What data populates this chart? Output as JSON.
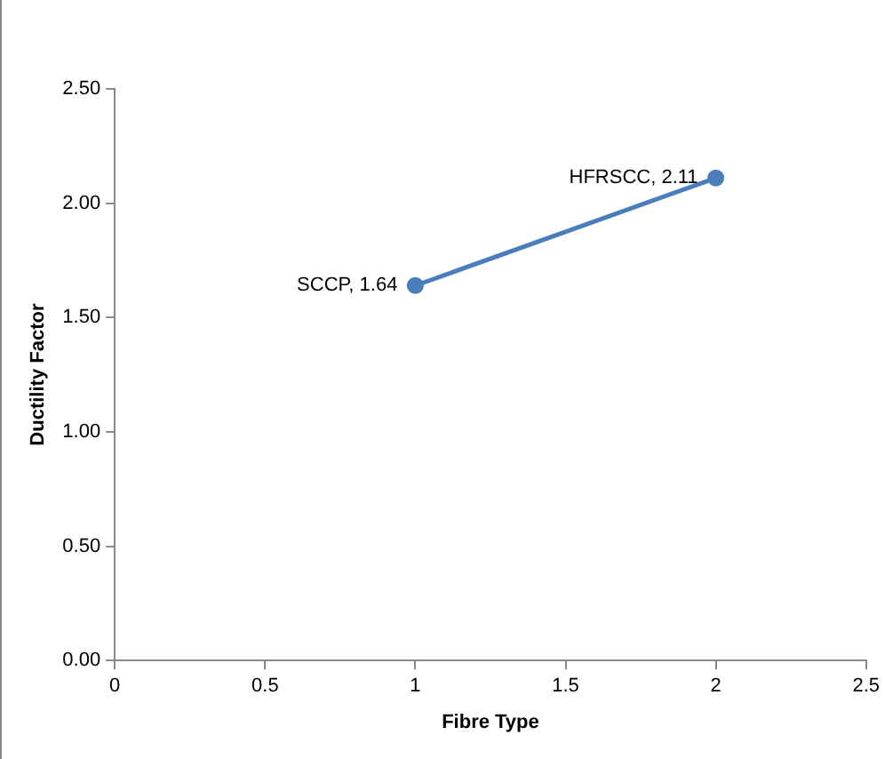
{
  "chart_data": {
    "type": "line",
    "xlabel": "Fibre Type",
    "ylabel": "Ductility Factor",
    "x": [
      1,
      2
    ],
    "series": [
      {
        "color": "#4a7ebb",
        "values": [
          1.64,
          2.11
        ]
      }
    ],
    "xlim": [
      0,
      2.5
    ],
    "xticks": [
      0,
      0.5,
      1,
      1.5,
      2,
      2.5
    ],
    "ylim": [
      0,
      2.5
    ],
    "yticks": [
      {
        "value": 0,
        "label": "0.00"
      },
      {
        "value": 0.5,
        "label": "0.50"
      },
      {
        "value": 1,
        "label": "1.00"
      },
      {
        "value": 1.5,
        "label": "1.50"
      },
      {
        "value": 2,
        "label": "2.00"
      },
      {
        "value": 2.5,
        "label": "2.50"
      }
    ],
    "annotations": [
      {
        "text": "SCCP, 1.64",
        "x": 1,
        "y": 1.64
      },
      {
        "text": "HFRSCC, 2.11",
        "x": 2,
        "y": 2.11
      }
    ],
    "grid": false,
    "legend": false,
    "marker": "circle",
    "line_style": "solid"
  }
}
